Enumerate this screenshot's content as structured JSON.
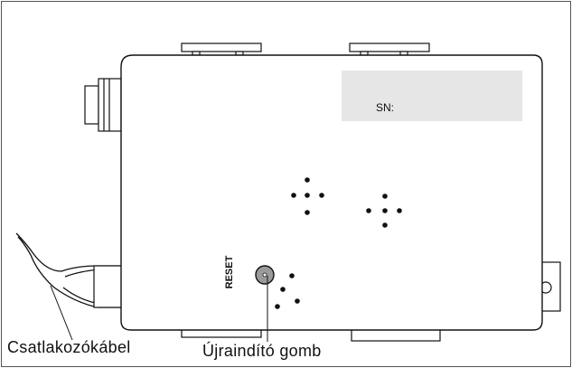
{
  "labels": {
    "cable": "Csatlakozókábel",
    "reset_button": "Újraindító gomb",
    "sn": "SN:",
    "reset": "RESET"
  },
  "colors": {
    "line": "#111111",
    "sn_panel": "#e6e6e6",
    "reset_knob": "#9a9a9a"
  }
}
